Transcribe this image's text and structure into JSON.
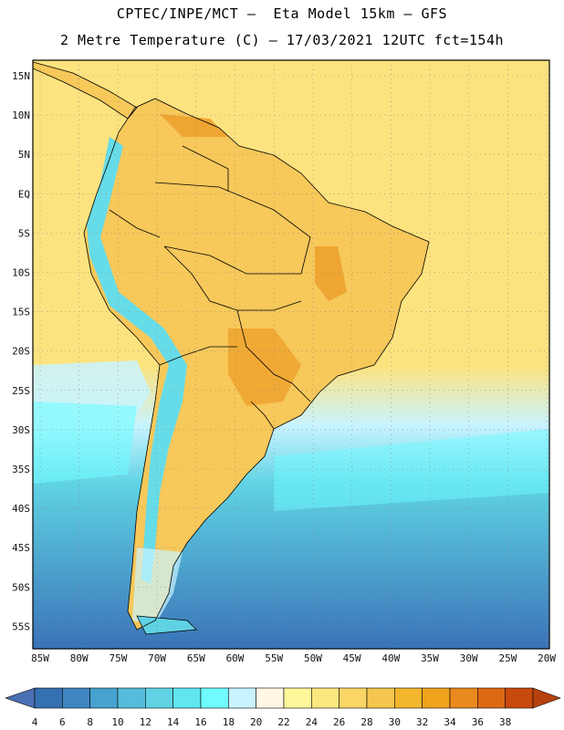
{
  "header": {
    "title_line1": "CPTEC/INPE/MCT –  Eta Model 15km – GFS",
    "title_line2": "2 Metre Temperature (C) – 17/03/2021 12UTC fct=154h"
  },
  "map": {
    "lat_labels": [
      "15N",
      "10N",
      "5N",
      "EQ",
      "5S",
      "10S",
      "15S",
      "20S",
      "25S",
      "30S",
      "35S",
      "40S",
      "45S",
      "50S",
      "55S"
    ],
    "lon_labels": [
      "85W",
      "80W",
      "75W",
      "70W",
      "65W",
      "60W",
      "55W",
      "50W",
      "45W",
      "40W",
      "35W",
      "30W",
      "25W",
      "20W"
    ]
  },
  "colorbar": {
    "tick_labels": [
      "4",
      "6",
      "8",
      "10",
      "12",
      "14",
      "16",
      "18",
      "20",
      "22",
      "24",
      "26",
      "28",
      "30",
      "32",
      "34",
      "36",
      "38"
    ],
    "low_color": "#4a6fb2",
    "high_color": "#b8420e",
    "colors": [
      "#3571b0",
      "#3f86c0",
      "#47a2cf",
      "#55bcdb",
      "#5fd3e4",
      "#5fe6ef",
      "#6ffbff",
      "#c9f4ff",
      "#fff6e3",
      "#fff79a",
      "#fde880",
      "#fad667",
      "#f4c64d",
      "#f2b72f",
      "#f0a31d",
      "#ea8a1e",
      "#de6914",
      "#c94a0f"
    ],
    "ocean_south": "#3a73b8",
    "ocean_mid": "#5fd3e4",
    "ocean_north": "#fde37f",
    "land_warm": "#f7c85a",
    "land_hot": "#eea531",
    "andes_cold": "#66dce8"
  }
}
